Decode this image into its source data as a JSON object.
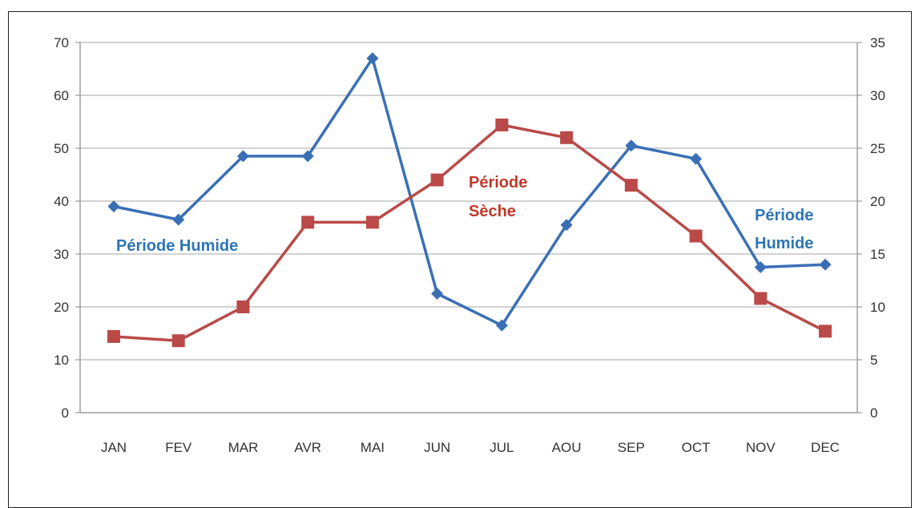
{
  "chart_data": {
    "type": "line",
    "categories": [
      "JAN",
      "FEV",
      "MAR",
      "AVR",
      "MAI",
      "JUN",
      "JUL",
      "AOU",
      "SEP",
      "OCT",
      "NOV",
      "DEC"
    ],
    "series": [
      {
        "axis": "left",
        "color": "#3a6fb5",
        "marker": "diamond",
        "values": [
          39,
          36.5,
          48.5,
          48.5,
          67,
          22.5,
          16.5,
          35.5,
          50.5,
          48,
          27.5,
          28
        ]
      },
      {
        "axis": "right",
        "color": "#b94a48",
        "marker": "square",
        "values": [
          7.2,
          6.8,
          10,
          18,
          18,
          22,
          27.2,
          26,
          21.5,
          16.7,
          10.8,
          7.7
        ]
      }
    ],
    "y_left": {
      "ylim": [
        0,
        70
      ],
      "ticks": [
        "0",
        "10",
        "20",
        "30",
        "40",
        "50",
        "60",
        "70"
      ]
    },
    "y_right": {
      "ylim": [
        0,
        35
      ],
      "ticks": [
        "0",
        "5",
        "10",
        "15",
        "20",
        "25",
        "30",
        "35"
      ]
    },
    "grid": true,
    "annotations": {
      "humide_left": "Période  Humide",
      "seche_line1": "Période",
      "seche_line2": "Sèche",
      "humide_right_line1": "Période",
      "humide_right_line2": "Humide"
    }
  }
}
